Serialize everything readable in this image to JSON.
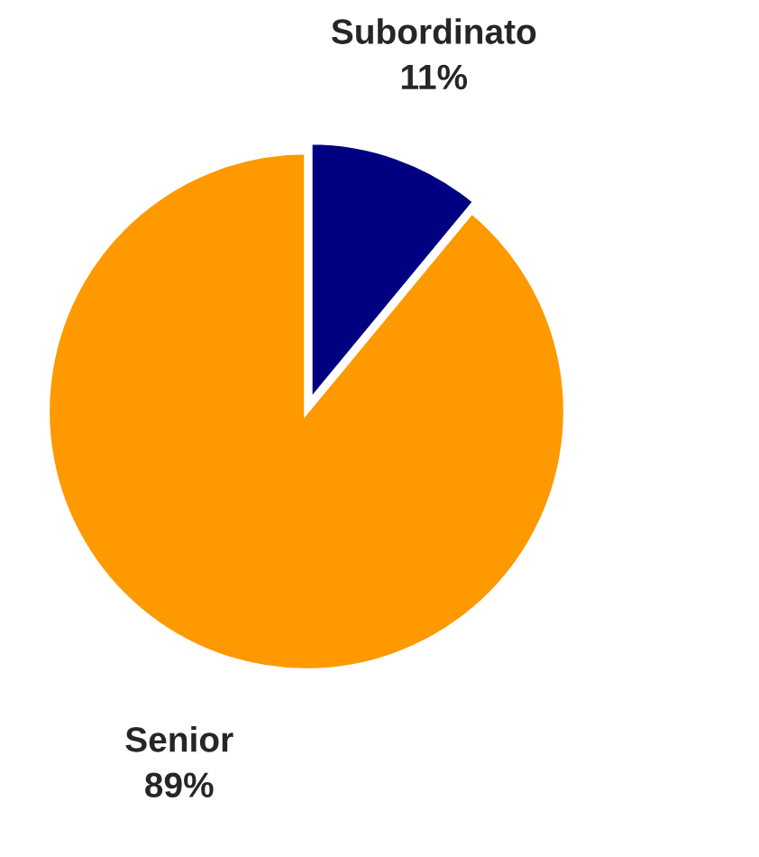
{
  "chart_data": {
    "type": "pie",
    "categories": [
      "Subordinato",
      "Senior"
    ],
    "values": [
      11,
      89
    ],
    "colors": [
      "#000080",
      "#ff9900"
    ],
    "value_labels": [
      "11%",
      "89%"
    ]
  }
}
